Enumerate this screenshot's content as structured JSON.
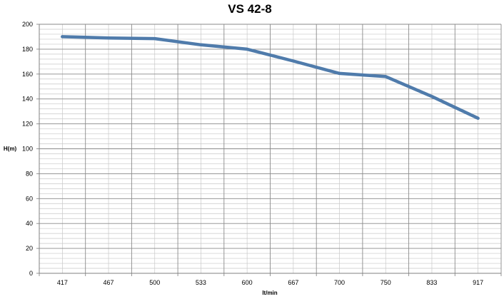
{
  "chart_data": {
    "type": "line",
    "title": "VS 42-8",
    "xlabel": "lt/min",
    "ylabel": "H(m)",
    "categories": [
      "417",
      "467",
      "500",
      "533",
      "600",
      "667",
      "700",
      "750",
      "833",
      "917"
    ],
    "series": [
      {
        "values": [
          190,
          189,
          188.5,
          183.5,
          180,
          170.5,
          160.5,
          158,
          142,
          124.5
        ],
        "color": "#4f7bab"
      }
    ],
    "ylim": [
      0,
      200
    ],
    "yticks": [
      0,
      20,
      40,
      60,
      80,
      100,
      120,
      140,
      160,
      180,
      200
    ],
    "minor_gridlines_per_major": 4,
    "grid": true,
    "legend": "none"
  }
}
